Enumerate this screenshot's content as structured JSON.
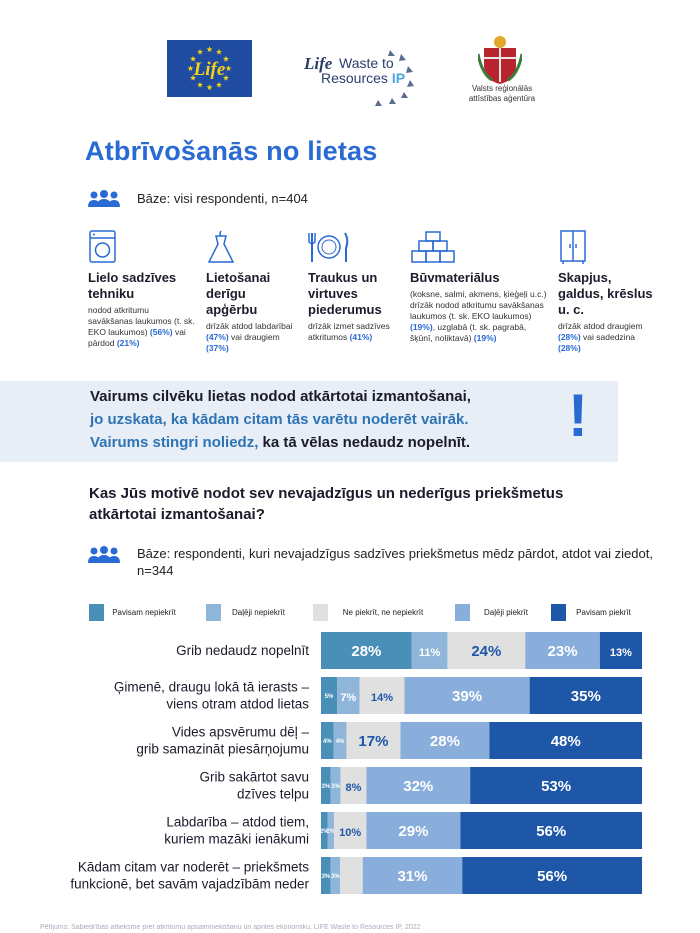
{
  "header": {
    "eu_logo_text": "Life",
    "project_logo": {
      "life": "Life",
      "line1": "Waste to",
      "line2": "Resources",
      "ip": "IP"
    },
    "agency": {
      "line1": "Valsts reģionālās",
      "line2": "attīstības aģentūra"
    }
  },
  "title": "Atbrīvošanās no lietas",
  "base1": "Bāze: visi respondenti, n=404",
  "categories": [
    {
      "icon": "washing-machine-icon",
      "title": "Lielo sadzīves tehniku",
      "desc_parts": [
        "nodod atkritumu savākšanas laukumos (t. sk. EKO laukumos) ",
        "(56%)",
        " vai pārdod ",
        "(21%)"
      ]
    },
    {
      "icon": "dress-icon",
      "title": "Lietošanai derīgu apģērbu",
      "desc_parts": [
        "drīzāk atdod labdarībai ",
        "(47%)",
        " vai draugiem ",
        "(37%)"
      ]
    },
    {
      "icon": "tableware-icon",
      "title": "Traukus un virtuves piederumus",
      "desc_parts": [
        "drīzāk izmet sadzīves atkritumos ",
        "(41%)"
      ]
    },
    {
      "icon": "bricks-icon",
      "title": "Būvmateriālus",
      "desc_parts": [
        "(koksne, salmi, akmens, ķieģeļi u.c.) drīzāk nodod atkritumu savākšanas laukumos (t. sk. EKO laukumos) ",
        "(19%)",
        ", uzglabā (t. sk. pagrabā, šķūnī, noliktavā) ",
        "(19%)"
      ]
    },
    {
      "icon": "wardrobe-icon",
      "title": "Skapjus, galdus, krēslus u. c.",
      "desc_parts": [
        "drīzāk atdod draugiem ",
        "(28%)",
        " vai sadedzina ",
        "(28%)"
      ]
    }
  ],
  "banner": {
    "line1": "Vairums cilvēku lietas nodod atkārtotai izmantošanai,",
    "line2": "jo uzskata, ka kādam citam tās varētu noderēt vairāk.",
    "line3a": "Vairums stingri noliedz,",
    "line3b": " ka tā vēlas nedaudz nopelnīt.",
    "mark": "!"
  },
  "question": "Kas Jūs motivē nodot sev nevajadzīgus un nederīgus priekšmetus atkārtotai izmantošanai?",
  "base2": "Bāze: respondenti, kuri nevajadzīgus sadzīves priekšmetus mēdz pārdot, atdot vai ziedot, n=344",
  "footer": "Pētījums: Sabiedrības attieksme pret atkritumu apsaimniekošanu un aprites ekonomiku, LIFE Waste to Resources IP, 2022",
  "chart_data": {
    "type": "bar",
    "orientation": "horizontal-stacked-100",
    "legend": [
      "Pavisam nepiekrīt",
      "Daļēji nepiekrīt",
      "Ne piekrīt, ne nepiekrīt",
      "Daļēji piekrīt",
      "Pavisam piekrīt"
    ],
    "colors": [
      "#4a8fb8",
      "#8fb6d9",
      "#e0e0e0",
      "#8aaedb",
      "#1e56a8"
    ],
    "categories": [
      [
        "Grib nedaudz nopelnīt"
      ],
      [
        "Ģimenē, draugu lokā tā ierasts –",
        "viens otram atdod lietas"
      ],
      [
        "Vides apsvērumu dēļ –",
        "grib samazināt piesārņojumu"
      ],
      [
        "Grib sakārtot savu",
        "dzīves telpu"
      ],
      [
        "Labdarība – atdod tiem,",
        "kuriem mazāki ienākumi"
      ],
      [
        "Kādam citam var noderēt – priekšmets",
        "funkcionē, bet savām vajadzībām neder"
      ]
    ],
    "values": [
      [
        28,
        11,
        24,
        23,
        13
      ],
      [
        5,
        7,
        14,
        39,
        35
      ],
      [
        4,
        4,
        17,
        28,
        48
      ],
      [
        3,
        3,
        8,
        32,
        53
      ],
      [
        2,
        2,
        10,
        29,
        56
      ],
      [
        3,
        3,
        7,
        31,
        56
      ]
    ],
    "labels": [
      [
        "28%",
        "11%",
        "24%",
        "23%",
        "13%"
      ],
      [
        "5%",
        "7%",
        "14%",
        "39%",
        "35%"
      ],
      [
        "4%",
        "4%",
        "17%",
        "28%",
        "48%"
      ],
      [
        "3%",
        "3%",
        "8%",
        "32%",
        "53%"
      ],
      [
        "2%",
        "2%",
        "10%",
        "29%",
        "56%"
      ],
      [
        "3%",
        "3%",
        "",
        "31%",
        "56%"
      ]
    ]
  }
}
